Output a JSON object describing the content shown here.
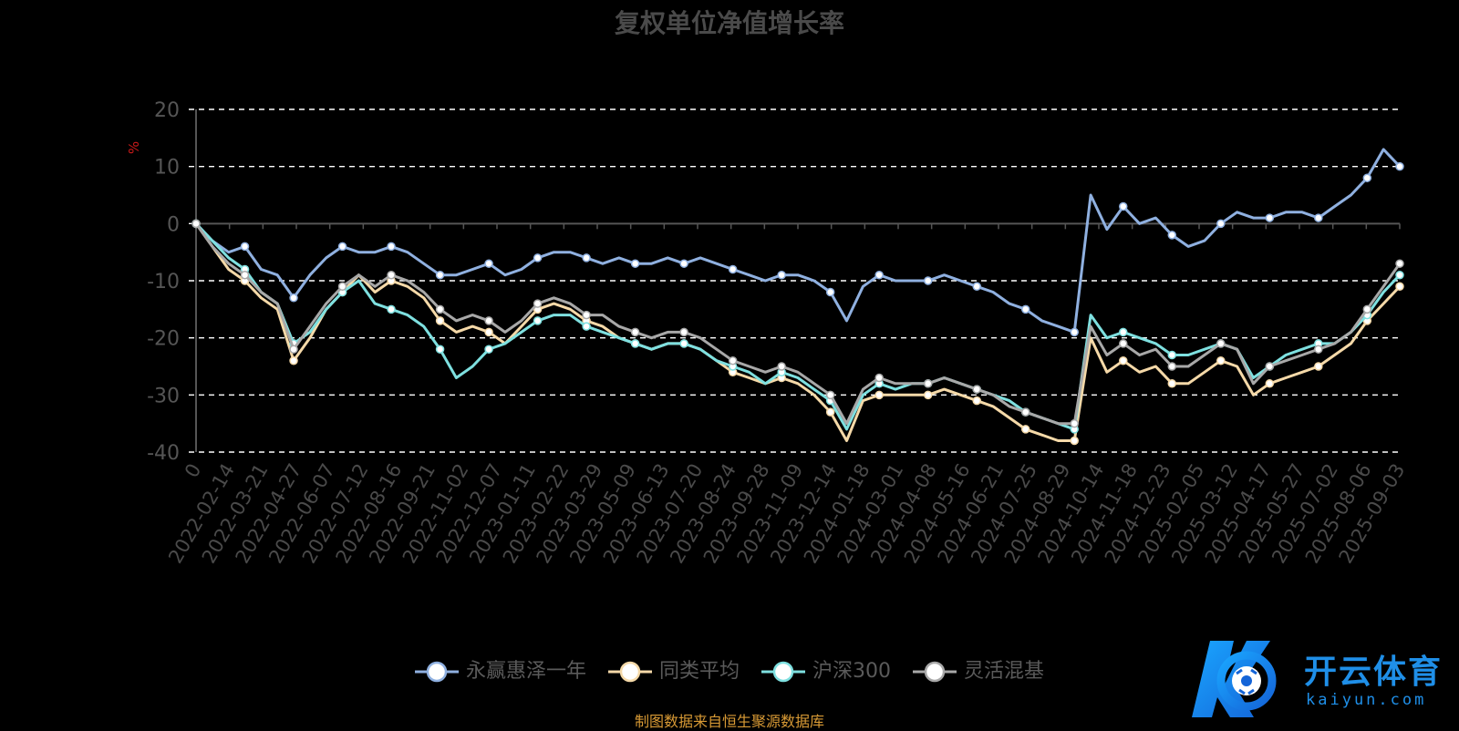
{
  "chart_data": {
    "type": "line",
    "title": "复权单位净值增长率",
    "ylabel": "%",
    "ylim": [
      -40,
      20
    ],
    "yticks": [
      20,
      10,
      0,
      -10,
      -20,
      -30,
      -40
    ],
    "grid": true,
    "legend_position": "bottom",
    "xtick_labels": [
      "0",
      "2022-02-14",
      "2022-03-21",
      "2022-04-27",
      "2022-06-07",
      "2022-07-12",
      "2022-08-16",
      "2022-09-21",
      "2022-11-02",
      "2022-12-07",
      "2023-01-11",
      "2023-02-22",
      "2023-03-29",
      "2023-05-09",
      "2023-06-13",
      "2023-07-20",
      "2023-08-24",
      "2023-09-28",
      "2023-11-09",
      "2023-12-14",
      "2024-01-18",
      "2024-03-01",
      "2024-04-08",
      "2024-05-16",
      "2024-06-21",
      "2024-07-25",
      "2024-08-29",
      "2024-10-14",
      "2024-11-18",
      "2024-12-23",
      "2025-02-05",
      "2025-03-12",
      "2025-04-17",
      "2025-05-27",
      "2025-07-02",
      "2025-08-06",
      "2025-09-03"
    ],
    "x": [
      "0",
      "2022-01-25",
      "2022-02-14",
      "2022-03-01",
      "2022-03-21",
      "2022-04-08",
      "2022-04-27",
      "2022-05-16",
      "2022-06-07",
      "2022-06-24",
      "2022-07-12",
      "2022-07-28",
      "2022-08-16",
      "2022-09-02",
      "2022-09-21",
      "2022-10-14",
      "2022-11-02",
      "2022-11-18",
      "2022-12-07",
      "2022-12-22",
      "2023-01-11",
      "2023-02-06",
      "2023-02-22",
      "2023-03-10",
      "2023-03-29",
      "2023-04-18",
      "2023-05-09",
      "2023-05-25",
      "2023-06-13",
      "2023-07-03",
      "2023-07-20",
      "2023-08-07",
      "2023-08-24",
      "2023-09-11",
      "2023-09-28",
      "2023-10-23",
      "2023-11-09",
      "2023-11-27",
      "2023-12-14",
      "2023-12-29",
      "2024-01-18",
      "2024-02-05",
      "2024-03-01",
      "2024-03-20",
      "2024-04-08",
      "2024-04-26",
      "2024-05-16",
      "2024-06-04",
      "2024-06-21",
      "2024-07-09",
      "2024-07-25",
      "2024-08-12",
      "2024-08-29",
      "2024-09-18",
      "2024-09-27",
      "2024-10-14",
      "2024-10-31",
      "2024-11-18",
      "2024-12-05",
      "2024-12-23",
      "2025-01-10",
      "2025-02-05",
      "2025-02-21",
      "2025-03-12",
      "2025-03-28",
      "2025-04-17",
      "2025-05-09",
      "2025-05-27",
      "2025-06-16",
      "2025-07-02",
      "2025-07-18",
      "2025-08-06",
      "2025-08-20",
      "2025-09-03",
      "2025-09-15"
    ],
    "series": [
      {
        "name": "永赢惠泽一年",
        "color": "#8fb0e0",
        "values": [
          0,
          -3,
          -5,
          -4,
          -8,
          -9,
          -13,
          -9,
          -6,
          -4,
          -5,
          -5,
          -4,
          -5,
          -7,
          -9,
          -9,
          -8,
          -7,
          -9,
          -8,
          -6,
          -5,
          -5,
          -6,
          -7,
          -6,
          -7,
          -7,
          -6,
          -7,
          -6,
          -7,
          -8,
          -9,
          -10,
          -9,
          -9,
          -10,
          -12,
          -17,
          -11,
          -9,
          -10,
          -10,
          -10,
          -9,
          -10,
          -11,
          -12,
          -14,
          -15,
          -17,
          -18,
          -19,
          5,
          -1,
          3,
          0,
          1,
          -2,
          -4,
          -3,
          0,
          2,
          1,
          1,
          2,
          2,
          1,
          3,
          5,
          8,
          13,
          10
        ]
      },
      {
        "name": "同类平均",
        "color": "#f5d9a8",
        "values": [
          0,
          -4,
          -8,
          -10,
          -13,
          -15,
          -24,
          -20,
          -15,
          -12,
          -9,
          -12,
          -10,
          -11,
          -13,
          -17,
          -19,
          -18,
          -19,
          -21,
          -18,
          -15,
          -14,
          -15,
          -17,
          -18,
          -20,
          -21,
          -22,
          -21,
          -21,
          -22,
          -24,
          -26,
          -27,
          -28,
          -27,
          -28,
          -30,
          -33,
          -38,
          -31,
          -30,
          -30,
          -30,
          -30,
          -29,
          -30,
          -31,
          -32,
          -34,
          -36,
          -37,
          -38,
          -38,
          -20,
          -26,
          -24,
          -26,
          -25,
          -28,
          -28,
          -26,
          -24,
          -25,
          -30,
          -28,
          -27,
          -26,
          -25,
          -23,
          -21,
          -17,
          -14,
          -11
        ]
      },
      {
        "name": "沪深300",
        "color": "#7ee0e0",
        "values": [
          0,
          -3,
          -6,
          -8,
          -12,
          -14,
          -21,
          -19,
          -15,
          -12,
          -10,
          -14,
          -15,
          -16,
          -18,
          -22,
          -27,
          -25,
          -22,
          -21,
          -19,
          -17,
          -16,
          -16,
          -18,
          -19,
          -20,
          -21,
          -22,
          -21,
          -21,
          -22,
          -24,
          -25,
          -26,
          -28,
          -26,
          -27,
          -29,
          -31,
          -36,
          -30,
          -28,
          -29,
          -28,
          -28,
          -27,
          -28,
          -29,
          -30,
          -31,
          -33,
          -34,
          -35,
          -36,
          -16,
          -20,
          -19,
          -20,
          -21,
          -23,
          -23,
          -22,
          -21,
          -22,
          -27,
          -25,
          -23,
          -22,
          -21,
          -21,
          -19,
          -16,
          -12,
          -9
        ]
      },
      {
        "name": "灵活混基",
        "color": "#a8a8a8",
        "values": [
          0,
          -4,
          -7,
          -9,
          -12,
          -14,
          -22,
          -18,
          -14,
          -11,
          -9,
          -11,
          -9,
          -10,
          -12,
          -15,
          -17,
          -16,
          -17,
          -19,
          -17,
          -14,
          -13,
          -14,
          -16,
          -16,
          -18,
          -19,
          -20,
          -19,
          -19,
          -20,
          -22,
          -24,
          -25,
          -26,
          -25,
          -26,
          -28,
          -30,
          -35,
          -29,
          -27,
          -28,
          -28,
          -28,
          -27,
          -28,
          -29,
          -30,
          -32,
          -33,
          -34,
          -35,
          -35,
          -18,
          -23,
          -21,
          -23,
          -22,
          -25,
          -25,
          -23,
          -21,
          -22,
          -28,
          -25,
          -24,
          -23,
          -22,
          -21,
          -19,
          -15,
          -11,
          -7
        ]
      }
    ]
  },
  "source_text": "制图数据来自恒生聚源数据库",
  "logo": {
    "name": "开云体育",
    "domain": "kaiyun.com",
    "color": "#1f8fe8"
  }
}
